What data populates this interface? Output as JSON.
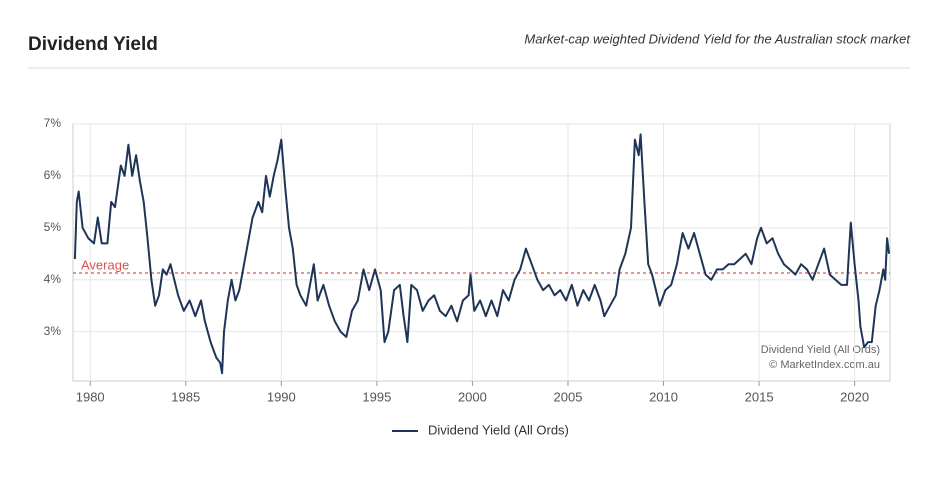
{
  "chart_data": {
    "type": "line",
    "title": "Dividend Yield",
    "subtitle": "Market-cap weighted Dividend Yield for the Australian stock market",
    "credits": [
      "Dividend Yield (All Ords)",
      "© MarketIndex.com.au"
    ],
    "average": {
      "value": 4.13,
      "label": "Average",
      "color": "#d9534f"
    },
    "x": [
      1979.2,
      1979.3,
      1979.4,
      1979.6,
      1979.9,
      1980.2,
      1980.4,
      1980.6,
      1980.9,
      1981.1,
      1981.3,
      1981.6,
      1981.8,
      1982.0,
      1982.2,
      1982.4,
      1982.6,
      1982.8,
      1983.0,
      1983.2,
      1983.4,
      1983.6,
      1983.8,
      1984.0,
      1984.2,
      1984.4,
      1984.6,
      1984.9,
      1985.2,
      1985.5,
      1985.8,
      1986.0,
      1986.3,
      1986.6,
      1986.8,
      1986.9,
      1987.0,
      1987.2,
      1987.4,
      1987.6,
      1987.8,
      1988.0,
      1988.3,
      1988.5,
      1988.8,
      1989.0,
      1989.2,
      1989.4,
      1989.6,
      1989.8,
      1990.0,
      1990.2,
      1990.4,
      1990.6,
      1990.8,
      1991.0,
      1991.3,
      1991.5,
      1991.7,
      1991.9,
      1992.2,
      1992.5,
      1992.8,
      1993.1,
      1993.4,
      1993.7,
      1994.0,
      1994.3,
      1994.6,
      1994.9,
      1995.2,
      1995.4,
      1995.6,
      1995.9,
      1996.2,
      1996.4,
      1996.6,
      1996.8,
      1997.1,
      1997.4,
      1997.7,
      1998.0,
      1998.3,
      1998.6,
      1998.9,
      1999.2,
      1999.5,
      1999.8,
      1999.9,
      2000.1,
      2000.4,
      2000.7,
      2001.0,
      2001.3,
      2001.6,
      2001.9,
      2002.2,
      2002.5,
      2002.8,
      2003.1,
      2003.4,
      2003.7,
      2004.0,
      2004.3,
      2004.6,
      2004.9,
      2005.2,
      2005.5,
      2005.8,
      2006.1,
      2006.4,
      2006.7,
      2006.9,
      2007.2,
      2007.5,
      2007.7,
      2008.0,
      2008.3,
      2008.5,
      2008.7,
      2008.8,
      2009.0,
      2009.2,
      2009.4,
      2009.6,
      2009.8,
      2010.1,
      2010.4,
      2010.7,
      2011.0,
      2011.3,
      2011.6,
      2011.9,
      2012.2,
      2012.5,
      2012.8,
      2013.1,
      2013.4,
      2013.7,
      2014.0,
      2014.3,
      2014.6,
      2014.9,
      2015.1,
      2015.4,
      2015.7,
      2016.0,
      2016.3,
      2016.6,
      2016.9,
      2017.2,
      2017.5,
      2017.8,
      2018.1,
      2018.4,
      2018.7,
      2019.0,
      2019.3,
      2019.6,
      2019.8,
      2020.0,
      2020.2,
      2020.3,
      2020.5,
      2020.7,
      2020.9,
      2021.1,
      2021.3,
      2021.5,
      2021.6,
      2021.7,
      2021.8
    ],
    "series": [
      {
        "name": "Dividend Yield (All Ords)",
        "color": "#1f3557",
        "values": [
          4.4,
          5.5,
          5.7,
          5.0,
          4.8,
          4.7,
          5.2,
          4.7,
          4.7,
          5.5,
          5.4,
          6.2,
          6.0,
          6.6,
          6.0,
          6.4,
          5.9,
          5.5,
          4.8,
          4.0,
          3.5,
          3.7,
          4.2,
          4.1,
          4.3,
          4.0,
          3.7,
          3.4,
          3.6,
          3.3,
          3.6,
          3.2,
          2.8,
          2.5,
          2.4,
          2.2,
          3.0,
          3.6,
          4.0,
          3.6,
          3.8,
          4.2,
          4.8,
          5.2,
          5.5,
          5.3,
          6.0,
          5.6,
          6.0,
          6.3,
          6.7,
          5.8,
          5.0,
          4.6,
          3.9,
          3.7,
          3.5,
          3.9,
          4.3,
          3.6,
          3.9,
          3.5,
          3.2,
          3.0,
          2.9,
          3.4,
          3.6,
          4.2,
          3.8,
          4.2,
          3.8,
          2.8,
          3.0,
          3.8,
          3.9,
          3.3,
          2.8,
          3.9,
          3.8,
          3.4,
          3.6,
          3.7,
          3.4,
          3.3,
          3.5,
          3.2,
          3.6,
          3.7,
          4.1,
          3.4,
          3.6,
          3.3,
          3.6,
          3.3,
          3.8,
          3.6,
          4.0,
          4.2,
          4.6,
          4.3,
          4.0,
          3.8,
          3.9,
          3.7,
          3.8,
          3.6,
          3.9,
          3.5,
          3.8,
          3.6,
          3.9,
          3.6,
          3.3,
          3.5,
          3.7,
          4.2,
          4.5,
          5.0,
          6.7,
          6.4,
          6.8,
          5.5,
          4.3,
          4.1,
          3.8,
          3.5,
          3.8,
          3.9,
          4.3,
          4.9,
          4.6,
          4.9,
          4.5,
          4.1,
          4.0,
          4.2,
          4.2,
          4.3,
          4.3,
          4.4,
          4.5,
          4.3,
          4.8,
          5.0,
          4.7,
          4.8,
          4.5,
          4.3,
          4.2,
          4.1,
          4.3,
          4.2,
          4.0,
          4.3,
          4.6,
          4.1,
          4.0,
          3.9,
          3.9,
          5.1,
          4.3,
          3.6,
          3.1,
          2.7,
          2.8,
          2.8,
          3.5,
          3.8,
          4.2,
          4.0,
          4.8,
          4.5
        ]
      }
    ],
    "xlim": [
      1979.1,
      2021.85
    ],
    "xticks": [
      1980,
      1985,
      1990,
      1995,
      2000,
      2005,
      2010,
      2015,
      2020
    ],
    "ylim": [
      2.05,
      7.0
    ],
    "yticks": [
      {
        "value": 3,
        "label": "3%"
      },
      {
        "value": 4,
        "label": "4%"
      },
      {
        "value": 5,
        "label": "5%"
      },
      {
        "value": 6,
        "label": "6%"
      },
      {
        "value": 7,
        "label": "7%"
      }
    ],
    "grid": true,
    "legend": "bottom"
  }
}
